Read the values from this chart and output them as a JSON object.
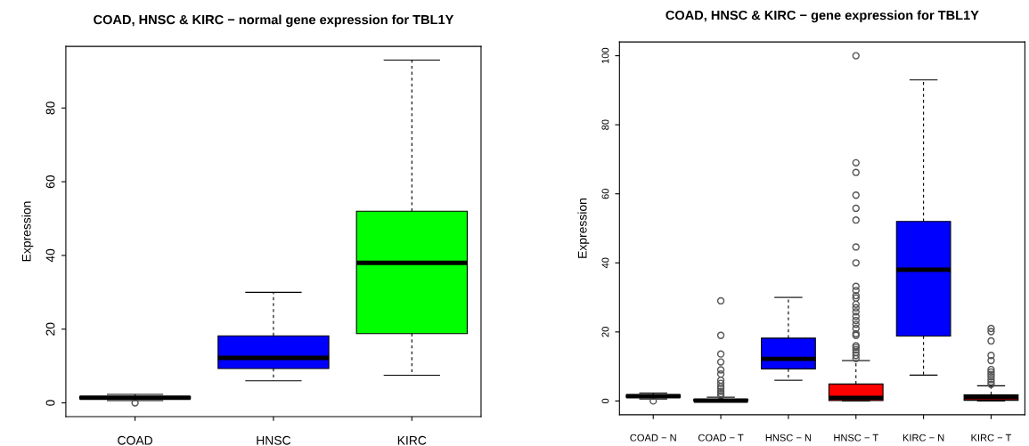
{
  "chart_data": [
    {
      "type": "box",
      "title": "COAD, HNSC & KIRC − normal gene expression for TBL1Y",
      "ylabel": "Expression",
      "categories": [
        "COAD",
        "HNSC",
        "KIRC"
      ],
      "colors": [
        "#ffffff",
        "#0000ff",
        "#00ff00"
      ],
      "ylim": [
        -3.72,
        96.72
      ],
      "yticks": [
        0,
        20,
        40,
        60,
        80
      ],
      "grid": false,
      "boxes": [
        {
          "low": 0.6,
          "q1": 1.1,
          "median": 1.4,
          "q3": 1.7,
          "high": 2.3,
          "outliers": [
            0
          ]
        },
        {
          "low": 6,
          "q1": 9.3,
          "median": 12.2,
          "q3": 18.2,
          "high": 30
        },
        {
          "low": 7.5,
          "q1": 18.8,
          "median": 38,
          "q3": 52,
          "high": 93
        }
      ]
    },
    {
      "type": "box",
      "title": "COAD, HNSC & KIRC − gene expression for TBL1Y",
      "ylabel": "Expression",
      "categories": [
        "COAD − N",
        "COAD − T",
        "HNSC − N",
        "HNSC − T",
        "KIRC − N",
        "KIRC − T"
      ],
      "colors": [
        "#ffffff",
        "#ffffff",
        "#0000ff",
        "#ff0000",
        "#0000ff",
        "#ff0000"
      ],
      "ylim": [
        -4,
        104
      ],
      "yticks": [
        0,
        20,
        40,
        60,
        80,
        100
      ],
      "grid": false,
      "boxes": [
        {
          "low": 0.6,
          "q1": 1.1,
          "median": 1.4,
          "q3": 1.7,
          "high": 2.3,
          "outliers": [
            0
          ]
        },
        {
          "low": 0,
          "q1": 0,
          "median": 0.1,
          "q3": 0.5,
          "high": 1.1,
          "outliers": [
            1.5,
            2.1,
            2.8,
            3.6,
            4.2,
            5.1,
            6,
            7.8,
            9,
            11.3,
            13.6,
            19,
            29
          ]
        },
        {
          "low": 6,
          "q1": 9.3,
          "median": 12.2,
          "q3": 18.2,
          "high": 30
        },
        {
          "low": 0,
          "q1": 0.1,
          "median": 0.9,
          "q3": 4.9,
          "high": 11.7,
          "outliers": [
            12.3,
            13.2,
            14,
            14.8,
            15.5,
            16,
            19,
            19.5,
            21,
            22.2,
            23.3,
            24.5,
            25.8,
            27,
            28,
            29.8,
            30.5,
            32,
            33.2,
            40,
            44.6,
            52.4,
            55.8,
            59.6,
            66.2,
            69,
            100
          ]
        },
        {
          "low": 7.5,
          "q1": 18.8,
          "median": 38,
          "q3": 52,
          "high": 93
        },
        {
          "low": 0,
          "q1": 0.2,
          "median": 1.1,
          "q3": 1.8,
          "high": 4.4,
          "outliers": [
            4.8,
            5.5,
            6.2,
            7,
            7.7,
            8.4,
            9.1,
            11.7,
            13.2,
            17.4,
            20.1,
            21
          ]
        }
      ]
    }
  ]
}
